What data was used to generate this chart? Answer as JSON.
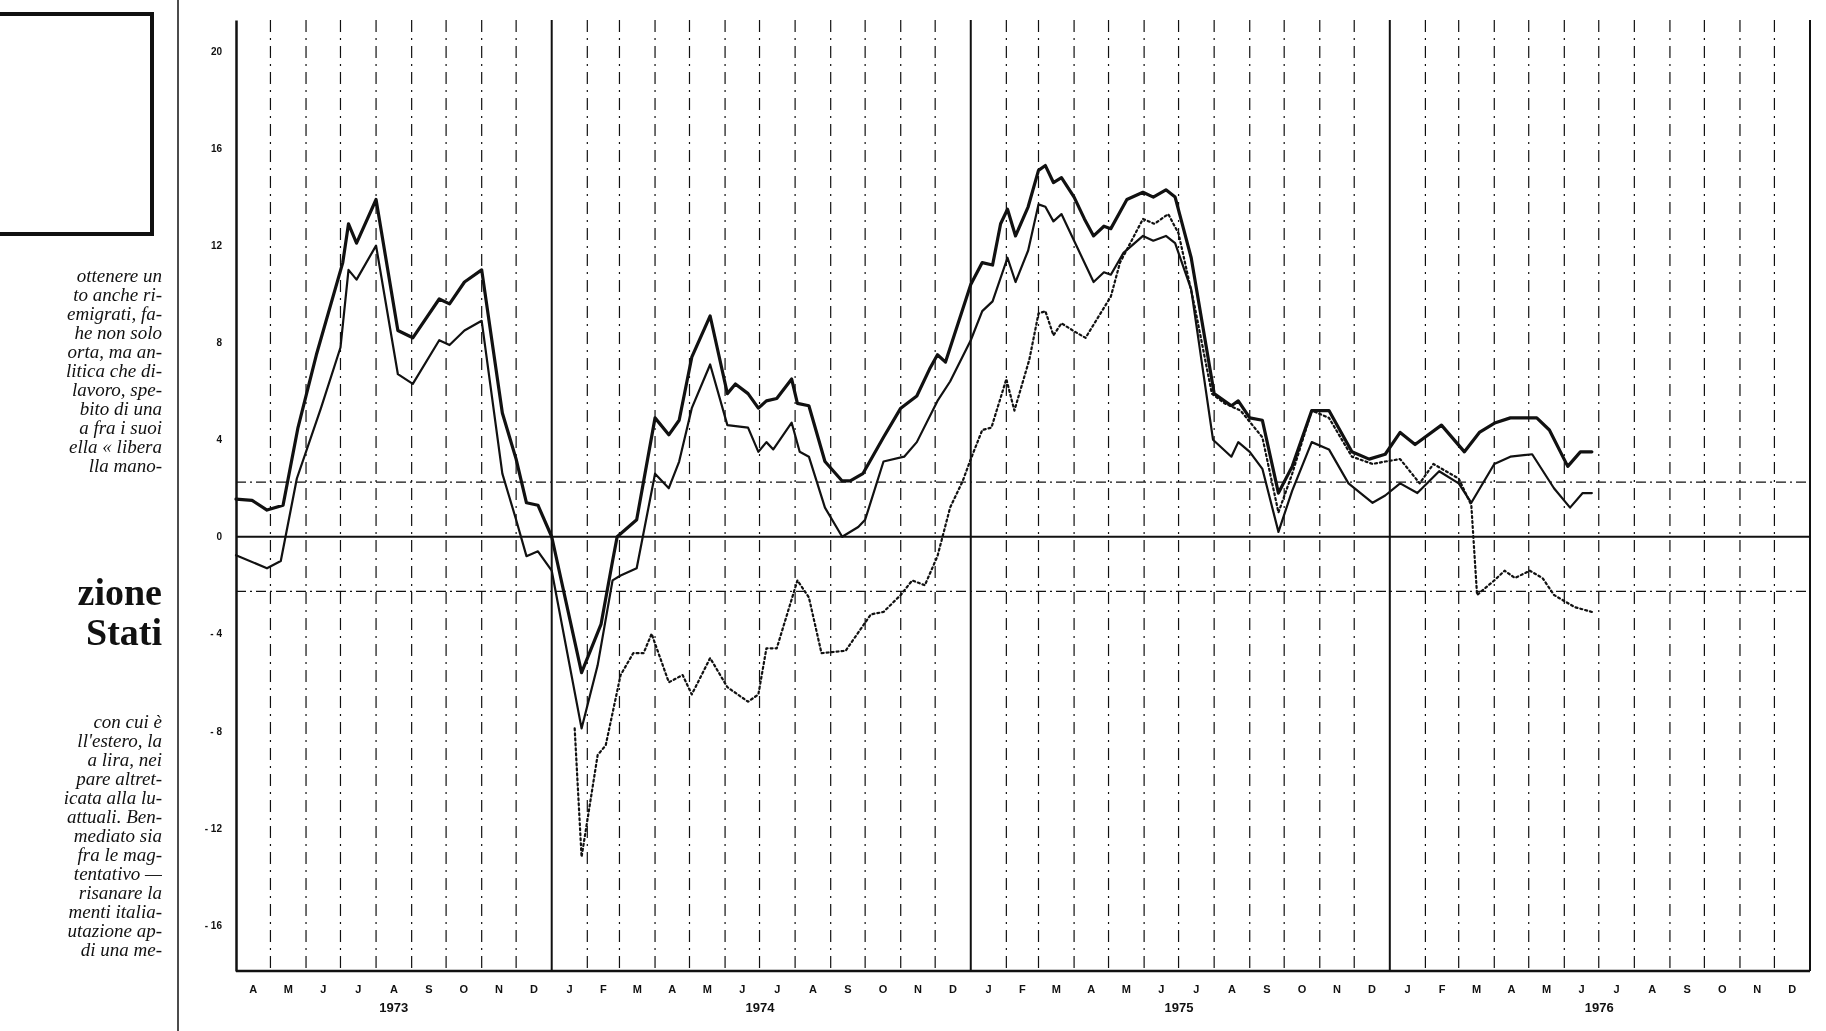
{
  "chart_data": {
    "type": "line",
    "xlim": [
      "1973-04-01",
      "1977-01-01"
    ],
    "xticks": [
      {
        "value": "1973-08-16",
        "label": "1973"
      },
      {
        "value": "1974-07-01",
        "label": "1974"
      },
      {
        "value": "1975-07-01",
        "label": "1975"
      },
      {
        "value": "1976-07-01",
        "label": "1976"
      }
    ],
    "ylim": [
      -17.9,
      21.3
    ],
    "yticks": [
      -16,
      -12,
      -8,
      -4,
      0,
      4,
      8,
      12,
      16,
      20
    ],
    "grid": "x",
    "ref_lines": [
      {
        "axis": "y",
        "value": 0,
        "line_style": "solid"
      },
      {
        "axis": "y",
        "value": 2.25,
        "line_style": "dashed"
      },
      {
        "axis": "y",
        "value": -2.25,
        "line_style": "dashed"
      },
      {
        "axis": "x",
        "value": "1974-01-01",
        "line_style": "solid"
      },
      {
        "axis": "x",
        "value": "1975-01-01",
        "line_style": "solid"
      },
      {
        "axis": "x",
        "value": "1976-01-01",
        "line_style": "solid"
      }
    ],
    "annotations": [
      "A",
      "M",
      "J",
      "J",
      "A",
      "S",
      "O",
      "N",
      "D",
      "J",
      "F",
      "M",
      "A",
      "M",
      "J",
      "J",
      "A",
      "S",
      "O",
      "N",
      "D",
      "J",
      "F",
      "M",
      "A",
      "M",
      "J",
      "J",
      "A",
      "S",
      "O",
      "N",
      "D",
      "J",
      "F",
      "M",
      "A",
      "M",
      "J",
      "J",
      "A",
      "S",
      "O",
      "N",
      "D",
      "ottenere un\nto anche ri-\nemigrati, fa-\nhe non solo\norta, ma an-\nlitica che di-\nlavoro, spe-\nbito di una\na fra i suoi\nella « libera\nlla mano-",
      "zione\nStati",
      "con cui è\nll'estero, la\na lira, nei\npare altret-\nicata alla lu-\nattuali. Ben-\nmediato sia\nfra le mag-\ntentativo —\nrisanare la\nmenti italia-\nutazione ap-\ndi una me-"
    ],
    "series": [
      {
        "color": "#111111",
        "line_style": "solid",
        "x": [
          "1973-04-01",
          "1973-04-15",
          "1973-04-28",
          "1973-05-12",
          "1973-05-25",
          "1973-06-10",
          "1973-07-03",
          "1973-07-08",
          "1973-07-15",
          "1973-08-01",
          "1973-08-20",
          "1973-09-02",
          "1973-09-25",
          "1973-10-04",
          "1973-10-17",
          "1973-11-01",
          "1973-11-19",
          "1973-12-01",
          "1973-12-10",
          "1973-12-20",
          "1974-01-01",
          "1974-01-27",
          "1974-02-13",
          "1974-02-23",
          "1974-02-27",
          "1974-03-16",
          "1974-04-01",
          "1974-04-13",
          "1974-04-22",
          "1974-05-03",
          "1974-05-19",
          "1974-06-03",
          "1974-06-10",
          "1974-06-21",
          "1974-06-30",
          "1974-07-07",
          "1974-07-16",
          "1974-07-29",
          "1974-08-03",
          "1974-08-13",
          "1974-08-27",
          "1974-09-11",
          "1974-09-18",
          "1974-09-29",
          "1974-10-17",
          "1974-11-01",
          "1974-11-15",
          "1974-11-26",
          "1974-12-03",
          "1974-12-10",
          "1974-12-21",
          "1975-01-01",
          "1975-01-11",
          "1975-01-20",
          "1975-01-27",
          "1975-02-02",
          "1975-02-09",
          "1975-02-20",
          "1975-03-01",
          "1975-03-07",
          "1975-03-14",
          "1975-03-21",
          "1975-04-01",
          "1975-04-10",
          "1975-04-18",
          "1975-04-27",
          "1975-05-03",
          "1975-05-17",
          "1975-05-31",
          "1975-06-09",
          "1975-06-20",
          "1975-06-28",
          "1975-07-12",
          "1975-08-01",
          "1975-08-16",
          "1975-08-22",
          "1975-09-01",
          "1975-09-12",
          "1975-09-26",
          "1975-10-08",
          "1975-10-25",
          "1975-11-09",
          "1975-11-29",
          "1975-12-14",
          "1975-12-28",
          "1976-01-10",
          "1976-01-23",
          "1976-02-15",
          "1976-03-06",
          "1976-03-19",
          "1976-04-02",
          "1976-04-15",
          "1976-05-08",
          "1976-05-19",
          "1976-06-04",
          "1976-06-15",
          "1976-06-25"
        ],
        "values": [
          1.55,
          1.5,
          1.1,
          1.3,
          4.5,
          7.5,
          11.3,
          12.9,
          12.1,
          13.9,
          8.5,
          8.2,
          9.8,
          9.6,
          10.5,
          11.0,
          5.1,
          3.2,
          1.4,
          1.3,
          0,
          -5.6,
          -3.6,
          -1.0,
          0,
          0.7,
          4.9,
          4.2,
          4.8,
          7.4,
          9.1,
          5.9,
          6.3,
          5.9,
          5.3,
          5.6,
          5.7,
          6.5,
          5.5,
          5.4,
          3.1,
          2.3,
          2.3,
          2.6,
          4.1,
          5.3,
          5.8,
          6.9,
          7.5,
          7.2,
          8.8,
          10.4,
          11.3,
          11.2,
          12.9,
          13.5,
          12.4,
          13.6,
          15.1,
          15.3,
          14.6,
          14.8,
          14.0,
          13.1,
          12.4,
          12.8,
          12.7,
          13.9,
          14.2,
          14.0,
          14.3,
          14.0,
          11.5,
          5.9,
          5.4,
          5.6,
          4.9,
          4.8,
          1.8,
          2.9,
          5.2,
          5.2,
          3.5,
          3.2,
          3.4,
          4.3,
          3.8,
          4.6,
          3.5,
          4.3,
          4.7,
          4.9,
          4.9,
          4.4,
          2.9,
          3.5,
          3.5
        ]
      },
      {
        "color": "#111111",
        "line_style": "solid",
        "x": [
          "1973-04-01",
          "1973-04-28",
          "1973-05-10",
          "1973-05-24",
          "1973-06-14",
          "1973-07-01",
          "1973-07-08",
          "1973-07-15",
          "1973-08-01",
          "1973-08-20",
          "1973-09-02",
          "1973-09-25",
          "1973-10-04",
          "1973-10-17",
          "1973-11-01",
          "1973-11-19",
          "1973-12-01",
          "1973-12-10",
          "1973-12-20",
          "1974-01-01",
          "1974-01-27",
          "1974-02-10",
          "1974-02-23",
          "1974-03-02",
          "1974-03-16",
          "1974-04-01",
          "1974-04-13",
          "1974-04-22",
          "1974-05-03",
          "1974-05-19",
          "1974-06-03",
          "1974-06-21",
          "1974-06-30",
          "1974-07-07",
          "1974-07-13",
          "1974-07-29",
          "1974-08-05",
          "1974-08-13",
          "1974-08-27",
          "1974-09-11",
          "1974-09-25",
          "1974-10-01",
          "1974-10-17",
          "1974-11-04",
          "1974-11-15",
          "1974-12-03",
          "1974-12-14",
          "1975-01-01",
          "1975-01-11",
          "1975-01-20",
          "1975-02-02",
          "1975-02-09",
          "1975-02-20",
          "1975-03-01",
          "1975-03-07",
          "1975-03-14",
          "1975-03-21",
          "1975-04-01",
          "1975-04-18",
          "1975-04-27",
          "1975-05-03",
          "1975-05-14",
          "1975-05-31",
          "1975-06-09",
          "1975-06-20",
          "1975-06-28",
          "1975-07-12",
          "1975-07-31",
          "1975-08-16",
          "1975-08-22",
          "1975-09-01",
          "1975-09-12",
          "1975-09-26",
          "1975-10-08",
          "1975-10-25",
          "1975-11-09",
          "1975-11-26",
          "1975-12-17",
          "1975-12-28",
          "1976-01-10",
          "1976-01-25",
          "1976-02-13",
          "1976-03-01",
          "1976-03-12",
          "1976-04-01",
          "1976-04-15",
          "1976-05-04",
          "1976-05-23",
          "1976-06-06",
          "1976-06-17",
          "1976-06-25"
        ],
        "values": [
          -0.76,
          -1.3,
          -1.0,
          2.4,
          5.3,
          7.8,
          11.0,
          10.6,
          12.0,
          6.7,
          6.3,
          8.1,
          7.9,
          8.5,
          8.9,
          2.6,
          0.7,
          -0.8,
          -0.6,
          -1.4,
          -7.9,
          -5.3,
          -1.8,
          -1.6,
          -1.3,
          2.6,
          2.0,
          3.1,
          5.3,
          7.1,
          4.6,
          4.5,
          3.5,
          3.9,
          3.6,
          4.7,
          3.5,
          3.3,
          1.2,
          0,
          0.4,
          0.7,
          3.1,
          3.3,
          3.9,
          5.6,
          6.4,
          8.1,
          9.3,
          9.7,
          11.5,
          10.5,
          11.8,
          13.7,
          13.6,
          13.0,
          13.3,
          12.2,
          10.5,
          10.9,
          10.8,
          11.7,
          12.4,
          12.2,
          12.4,
          12.1,
          10.2,
          4.0,
          3.3,
          3.9,
          3.5,
          2.8,
          0.2,
          1.9,
          3.9,
          3.6,
          2.2,
          1.4,
          1.7,
          2.2,
          1.8,
          2.7,
          2.2,
          1.4,
          3.0,
          3.3,
          3.4,
          2.0,
          1.2,
          1.8,
          1.8
        ]
      },
      {
        "color": "#111111",
        "line_style": "dotted",
        "x": [
          "1974-01-21",
          "1974-01-27",
          "1974-02-10",
          "1974-02-17",
          "1974-03-02",
          "1974-03-13",
          "1974-03-22",
          "1974-03-29",
          "1974-04-13",
          "1974-04-25",
          "1974-05-03",
          "1974-05-19",
          "1974-06-03",
          "1974-06-21",
          "1974-06-30",
          "1974-07-07",
          "1974-07-16",
          "1974-08-03",
          "1974-08-13",
          "1974-08-24",
          "1974-09-14",
          "1974-10-06",
          "1974-10-17",
          "1974-11-01",
          "1974-11-11",
          "1974-11-22",
          "1974-12-03",
          "1974-12-14",
          "1974-12-25",
          "1975-01-01",
          "1975-01-11",
          "1975-01-19",
          "1975-02-01",
          "1975-02-08",
          "1975-02-21",
          "1975-03-01",
          "1975-03-07",
          "1975-03-14",
          "1975-03-21",
          "1975-03-31",
          "1975-04-11",
          "1975-05-03",
          "1975-05-11",
          "1975-05-31",
          "1975-06-10",
          "1975-06-22",
          "1975-07-01",
          "1975-07-15",
          "1975-07-30",
          "1975-08-10",
          "1975-08-24",
          "1975-09-12",
          "1975-09-26",
          "1975-10-08",
          "1975-10-25",
          "1975-11-09",
          "1975-11-29",
          "1975-12-17",
          "1975-12-28",
          "1976-01-10",
          "1976-01-27",
          "1976-02-08",
          "1976-03-01",
          "1976-03-12",
          "1976-03-17",
          "1976-04-01",
          "1976-04-10",
          "1976-04-19",
          "1976-05-02",
          "1976-05-13",
          "1976-05-23",
          "1976-06-10",
          "1976-06-25"
        ],
        "values": [
          -7.9,
          -13.2,
          -9.0,
          -8.6,
          -5.7,
          -4.8,
          -4.8,
          -4.0,
          -6.0,
          -5.7,
          -6.5,
          -5.0,
          -6.2,
          -6.8,
          -6.5,
          -4.6,
          -4.6,
          -1.8,
          -2.5,
          -4.8,
          -4.7,
          -3.2,
          -3.1,
          -2.4,
          -1.8,
          -2.0,
          -0.8,
          1.2,
          2.3,
          3.2,
          4.4,
          4.5,
          6.5,
          5.2,
          7.3,
          9.2,
          9.3,
          8.3,
          8.8,
          8.5,
          8.2,
          9.9,
          11.3,
          13.1,
          12.9,
          13.3,
          12.5,
          9.5,
          5.9,
          5.5,
          5.2,
          4.1,
          1.0,
          2.6,
          5.2,
          4.9,
          3.3,
          3.0,
          3.1,
          3.2,
          2.2,
          3.0,
          2.4,
          1.3,
          -2.4,
          -1.8,
          -1.4,
          -1.7,
          -1.4,
          -1.7,
          -2.4,
          -2.9,
          -3.1
        ]
      }
    ]
  }
}
